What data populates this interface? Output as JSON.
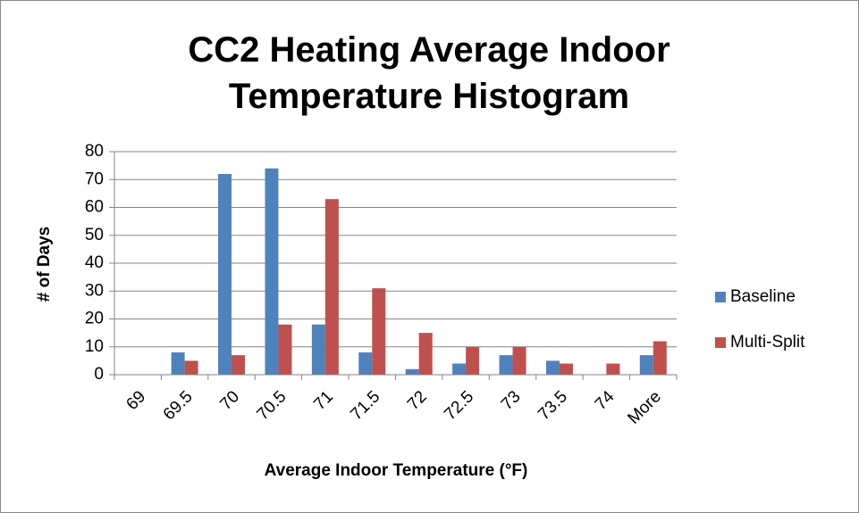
{
  "chart_data": {
    "type": "bar",
    "title": "CC2 Heating Average Indoor Temperature Histogram",
    "x_label": "Average Indoor Temperature (°F)",
    "y_label": "# of Days",
    "categories": [
      "69",
      "69.5",
      "70",
      "70.5",
      "71",
      "71.5",
      "72",
      "72.5",
      "73",
      "73.5",
      "74",
      "More"
    ],
    "series": [
      {
        "name": "Baseline",
        "color": "#4f81bd",
        "values": [
          0,
          8,
          72,
          74,
          18,
          8,
          2,
          4,
          7,
          5,
          0,
          7
        ]
      },
      {
        "name": "Multi-Split",
        "color": "#c0504d",
        "values": [
          0,
          5,
          7,
          18,
          63,
          31,
          15,
          10,
          10,
          4,
          4,
          12
        ]
      }
    ],
    "ylim": [
      0,
      80
    ],
    "yticks": [
      0,
      10,
      20,
      30,
      40,
      50,
      60,
      70,
      80
    ],
    "grid": true,
    "legend": "right"
  }
}
